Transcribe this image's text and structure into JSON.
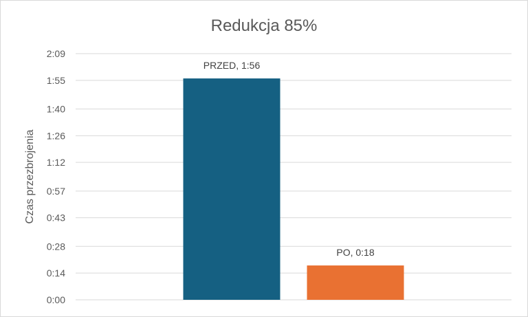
{
  "chart_data": {
    "type": "bar",
    "title": "Redukcja 85%",
    "xlabel": "",
    "ylabel": "Czas przezbrojenia",
    "ylim": [
      0,
      129
    ],
    "y_unit": "seconds",
    "y_ticks": [
      {
        "value": 0,
        "label": "0:00"
      },
      {
        "value": 14,
        "label": "0:14"
      },
      {
        "value": 28,
        "label": "0:28"
      },
      {
        "value": 43,
        "label": "0:43"
      },
      {
        "value": 57,
        "label": "0:57"
      },
      {
        "value": 72,
        "label": "1:12"
      },
      {
        "value": 86,
        "label": "1:26"
      },
      {
        "value": 100,
        "label": "1:40"
      },
      {
        "value": 115,
        "label": "1:55"
      },
      {
        "value": 129,
        "label": "2:09"
      }
    ],
    "categories": [
      "PRZED",
      "PO"
    ],
    "values": [
      116,
      18
    ],
    "data_labels": [
      "PRZED, 1:56",
      "PO, 0:18"
    ],
    "colors": [
      "#156082",
      "#e97132"
    ],
    "grid": true,
    "legend": "none"
  }
}
